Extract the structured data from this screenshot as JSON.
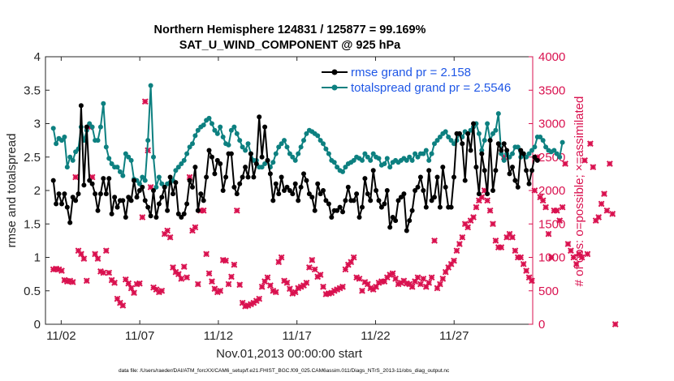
{
  "titles": {
    "line1": "Northern Hemisphere 124831 / 125877 = 99.169%",
    "line2": "SAT_U_WIND_COMPONENT @ 925 hPa"
  },
  "footer": "data file: /Users/raeder/DAI/ATM_forcXX/CAM6_setup/f.e21.FHIST_BGC.f09_025.CAM6assim.011/Diags_NTrS_2013-11/obs_diag_output.nc",
  "colors": {
    "rmse": "#000000",
    "spread": "#0d8080",
    "obs": "#d9114f",
    "legend_text": "#1f57e6"
  },
  "chart_data": {
    "type": "line",
    "xlabel": "Nov.01,2013 00:00:00 start",
    "ylabel_left": "rmse and totalspread",
    "ylabel_right": "# of obs: o=possible; ×=assimilated",
    "xlim": [
      0.5,
      31.5
    ],
    "ylim_left": [
      0,
      4
    ],
    "ylim_right": [
      0,
      4000
    ],
    "x_ticks": [
      {
        "x": 1.5,
        "label": "11/02"
      },
      {
        "x": 6.5,
        "label": "11/07"
      },
      {
        "x": 11.5,
        "label": "11/12"
      },
      {
        "x": 16.5,
        "label": "11/17"
      },
      {
        "x": 21.5,
        "label": "11/22"
      },
      {
        "x": 26.5,
        "label": "11/27"
      }
    ],
    "y_ticks_left": [
      0,
      0.5,
      1,
      1.5,
      2,
      2.5,
      3,
      3.5,
      4
    ],
    "y_ticks_right": [
      0,
      500,
      1000,
      1500,
      2000,
      2500,
      3000,
      3500,
      4000
    ],
    "legend_position": "top-right",
    "series": [
      {
        "name": "rmse grand pr = 2.158",
        "axis": "left",
        "marker": "dot",
        "values": [
          2.15,
          1.8,
          1.95,
          1.8,
          1.95,
          1.75,
          1.52,
          1.9,
          1.85,
          1.95,
          3.27,
          2.08,
          2.95,
          2.15,
          2.1,
          1.95,
          1.7,
          1.95,
          2.18,
          1.95,
          2.18,
          1.65,
          1.9,
          1.75,
          1.85,
          1.85,
          1.6,
          1.9,
          1.85,
          2.15,
          1.9,
          2.0,
          2.05,
          1.85,
          1.75,
          1.62,
          2.0,
          1.6,
          1.8,
          1.9,
          2.05,
          1.7,
          2.2,
          1.95,
          2.12,
          1.65,
          1.6,
          1.65,
          1.8,
          2.15,
          2.05,
          2.35,
          1.7,
          1.95,
          1.85,
          2.2,
          2.6,
          2.5,
          2.25,
          2.45,
          2.4,
          2.0,
          2.2,
          2.55,
          2.55,
          2.05,
          1.95,
          2.1,
          2.2,
          2.35,
          2.2,
          2.55,
          2.2,
          2.4,
          3.1,
          2.5,
          2.95,
          2.45,
          2.25,
          1.85,
          2.1,
          1.95,
          2.2,
          2.0,
          2.05,
          2.0,
          1.95,
          2.1,
          1.85,
          2.05,
          2.25,
          2.15,
          1.95,
          1.9,
          1.7,
          2.1,
          1.95,
          2.0,
          1.85,
          1.8,
          1.6,
          1.7,
          1.7,
          1.75,
          1.68,
          1.85,
          2.05,
          1.85,
          1.85,
          1.95,
          1.6,
          1.75,
          2.18,
          1.95,
          1.85,
          2.3,
          2.0,
          1.85,
          1.75,
          1.8,
          2.0,
          1.45,
          1.6,
          1.55,
          1.85,
          1.9,
          1.95,
          1.4,
          1.55,
          1.7,
          2.0,
          2.05,
          2.2,
          2.0,
          1.75,
          2.3,
          1.85,
          1.9,
          2.2,
          1.75,
          2.35,
          2.05,
          1.75,
          1.75,
          2.2,
          2.85,
          2.85,
          2.7,
          2.15,
          2.85,
          2.6,
          3.0,
          2.35,
          1.95,
          2.55,
          2.3,
          1.95,
          2.75,
          2.0,
          2.3,
          2.7,
          2.6,
          2.7,
          2.6,
          2.25,
          2.35,
          2.15,
          2.05,
          2.6,
          2.55,
          2.3,
          2.1,
          2.3,
          2.5,
          2.45
        ]
      },
      {
        "name": "totalspread grand pr = 2.5546",
        "axis": "left",
        "marker": "dot",
        "values": [
          2.93,
          2.7,
          2.78,
          2.75,
          2.8,
          2.35,
          2.5,
          2.45,
          2.58,
          2.62,
          2.95,
          2.75,
          2.9,
          3.0,
          2.95,
          2.75,
          2.75,
          2.95,
          3.3,
          2.65,
          2.48,
          2.4,
          2.35,
          2.35,
          2.28,
          2.22,
          2.55,
          2.5,
          2.45,
          2.17,
          2.15,
          2.1,
          2.2,
          2.15,
          2.75,
          3.57,
          2.5,
          2.05,
          2.2,
          2.1,
          2.05,
          2.1,
          2.12,
          2.15,
          2.3,
          2.35,
          2.4,
          2.45,
          2.55,
          2.65,
          2.7,
          2.82,
          2.9,
          2.95,
          2.98,
          3.05,
          3.08,
          3.0,
          2.9,
          2.85,
          2.95,
          2.8,
          2.7,
          2.68,
          2.9,
          2.95,
          2.85,
          2.75,
          2.65,
          2.6,
          2.7,
          2.55,
          2.45,
          2.45,
          2.35,
          2.35,
          2.4,
          2.45,
          2.35,
          2.42,
          2.55,
          2.65,
          2.7,
          2.75,
          2.65,
          2.55,
          2.5,
          2.45,
          2.55,
          2.65,
          2.75,
          2.85,
          2.9,
          2.88,
          2.85,
          2.82,
          2.75,
          2.7,
          2.62,
          2.55,
          2.45,
          2.42,
          2.35,
          2.3,
          2.28,
          2.35,
          2.4,
          2.42,
          2.45,
          2.5,
          2.48,
          2.45,
          2.55,
          2.5,
          2.45,
          2.55,
          2.5,
          2.48,
          2.38,
          2.4,
          2.48,
          2.35,
          2.42,
          2.45,
          2.42,
          2.45,
          2.48,
          2.45,
          2.5,
          2.45,
          2.55,
          2.5,
          2.55,
          2.55,
          2.6,
          2.45,
          2.55,
          2.7,
          2.75,
          2.8,
          2.85,
          2.88,
          2.8,
          2.75,
          2.7,
          2.75,
          2.85,
          2.8,
          2.88,
          2.85,
          2.9,
          2.95,
          3.0,
          2.85,
          2.6,
          2.75,
          3.0,
          2.75,
          2.85,
          2.9,
          3.15,
          2.55,
          2.45,
          2.55,
          2.5,
          2.55,
          2.65,
          2.65,
          2.5,
          2.55,
          2.5,
          2.55,
          2.6,
          2.65,
          2.8,
          2.8,
          2.75,
          2.65,
          2.6,
          2.58,
          2.6,
          2.55,
          2.5,
          2.72
        ]
      },
      {
        "name": "obs assimilated",
        "axis": "right",
        "marker": "x",
        "values": [
          820,
          830,
          820,
          800,
          660,
          640,
          650,
          630,
          2200,
          1100,
          1050,
          980,
          650,
          2950,
          2200,
          1050,
          980,
          790,
          770,
          1100,
          770,
          660,
          620,
          380,
          320,
          280,
          670,
          610,
          540,
          470,
          600,
          610,
          1600,
          3330,
          2600,
          2050,
          550,
          520,
          480,
          500,
          1350,
          1400,
          1300,
          850,
          780,
          750,
          680,
          860,
          700,
          2200,
          1400,
          1450,
          600,
          1700,
          1700,
          1050,
          760,
          640,
          530,
          480,
          500,
          960,
          950,
          600,
          710,
          890,
          1700,
          590,
          320,
          270,
          280,
          300,
          320,
          350,
          380,
          560,
          640,
          700,
          580,
          500,
          480,
          930,
          1000,
          650,
          620,
          530,
          460,
          480,
          540,
          560,
          580,
          620,
          850,
          960,
          820,
          710,
          740,
          560,
          450,
          460,
          470,
          500,
          520,
          540,
          560,
          820,
          890,
          930,
          1000,
          700,
          680,
          500,
          630,
          600,
          540,
          520,
          560,
          620,
          640,
          640,
          700,
          740,
          760,
          680,
          600,
          620,
          650,
          610,
          600,
          560,
          640,
          700,
          600,
          680,
          560,
          620,
          700,
          1250,
          540,
          600,
          680,
          780,
          850,
          900,
          950,
          1100,
          1200,
          1300,
          1500,
          1450,
          1550,
          1600,
          1750,
          1850,
          1900,
          2000,
          1850,
          1700,
          1500,
          1250,
          1150,
          1150,
          2500,
          1300,
          1350,
          1300,
          1100,
          1000,
          1000,
          900,
          800,
          700,
          650,
          2000,
          2500,
          1900,
          1850,
          1750,
          1350,
          1000,
          1700,
          1700,
          1550,
          1750,
          2400,
          1200,
          1100,
          1000,
          900,
          1050,
          1000,
          2450,
          1050,
          2700,
          2350,
          1550,
          1600,
          1800,
          1950,
          1700,
          2400,
          1650,
          0
        ]
      }
    ]
  }
}
